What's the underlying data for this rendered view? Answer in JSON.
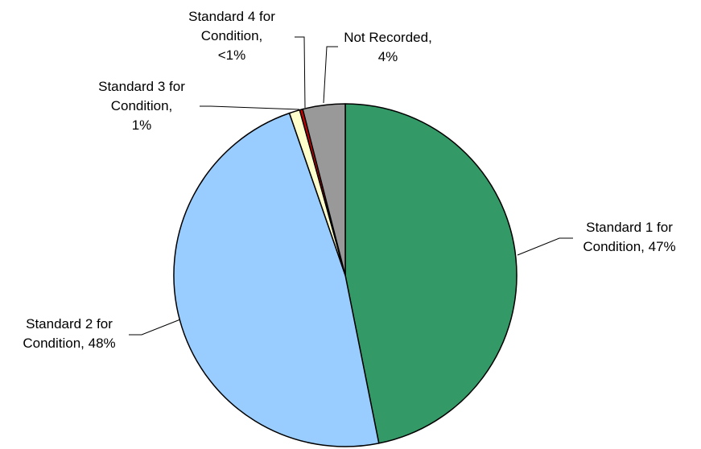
{
  "chart_data": {
    "type": "pie",
    "title": "",
    "slices": [
      {
        "name": "Standard 1 for Condition",
        "value": 47,
        "label_lines": [
          "Standard 1 for",
          "Condition, 47%"
        ],
        "color": "#339966"
      },
      {
        "name": "Standard 2 for Condition",
        "value": 48,
        "label_lines": [
          "Standard 2 for",
          "Condition, 48%"
        ],
        "color": "#99CCFF"
      },
      {
        "name": "Standard 3 for Condition",
        "value": 1,
        "label_lines": [
          "Standard 3 for",
          "Condition,",
          "1%"
        ],
        "color": "#FFFFCC"
      },
      {
        "name": "Standard 4 for Condition",
        "value": 0.3,
        "label_lines": [
          "Standard 4 for",
          "Condition,",
          "<1%"
        ],
        "color": "#CC0000"
      },
      {
        "name": "Not Recorded",
        "value": 4,
        "label_lines": [
          "Not Recorded,",
          "4%"
        ],
        "color": "#999999"
      }
    ]
  }
}
